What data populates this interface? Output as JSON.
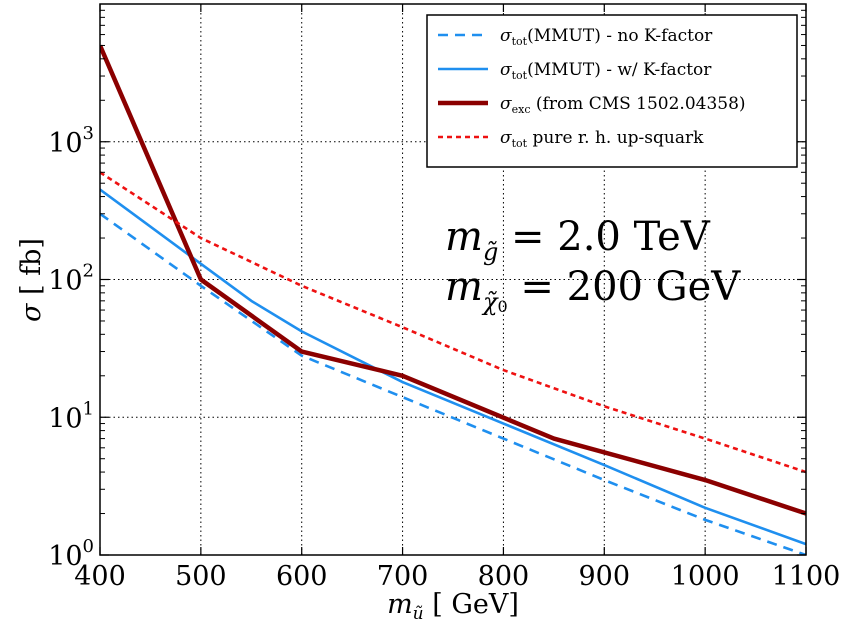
{
  "chart_data": {
    "type": "line",
    "title": "",
    "xlabel": {
      "base": "m",
      "sub": "ũ",
      "unit": "GeV"
    },
    "ylabel": {
      "base": "σ",
      "unit": "fb"
    },
    "xlim": [
      400,
      1100
    ],
    "ylim": [
      1,
      10000
    ],
    "yscale": "log",
    "grid": true,
    "legend_position": "top-right",
    "xticks": [
      "400",
      "500",
      "600",
      "700",
      "800",
      "900",
      "1000",
      "1100"
    ],
    "yticks": [
      {
        "value": 1,
        "base": "10",
        "exp": "0"
      },
      {
        "value": 10,
        "base": "10",
        "exp": "1"
      },
      {
        "value": 100,
        "base": "10",
        "exp": "2"
      },
      {
        "value": 1000,
        "base": "10",
        "exp": "3"
      }
    ],
    "series": [
      {
        "sym": "σ",
        "sub": "tot",
        "text": "(MMUT)  - no K-factor",
        "color": "#1f8fef",
        "style": "dashed",
        "x": [
          400,
          500,
          600,
          700,
          800,
          900,
          1000,
          1100
        ],
        "y": [
          300,
          90,
          28,
          14,
          7,
          3.5,
          1.8,
          1.0
        ]
      },
      {
        "sym": "σ",
        "sub": "tot",
        "text": "(MMUT)  - w/ K-factor",
        "color": "#1f8fef",
        "style": "solid",
        "x": [
          400,
          500,
          550,
          600,
          700,
          800,
          900,
          1000,
          1100
        ],
        "y": [
          450,
          130,
          70,
          42,
          18,
          9,
          4.5,
          2.2,
          1.2
        ]
      },
      {
        "sym": "σ",
        "sub": "exc",
        "text": " (from CMS 1502.04358)",
        "color": "#8b0000",
        "style": "solid",
        "x": [
          400,
          500,
          600,
          700,
          850,
          1000,
          1100
        ],
        "y": [
          5000,
          100,
          30,
          20,
          7,
          3.5,
          2
        ]
      },
      {
        "sym": "σ",
        "sub": "tot",
        "text": " pure r. h. up-squark",
        "color": "#ee1111",
        "style": "dotted",
        "x": [
          400,
          500,
          600,
          700,
          800,
          900,
          1000,
          1100
        ],
        "y": [
          600,
          200,
          90,
          45,
          22,
          12,
          7,
          4
        ]
      }
    ],
    "annotations": [
      {
        "base": "m",
        "sub": "g̃",
        "text": " = 2.0 TeV"
      },
      {
        "base": "m",
        "sub": "χ̃",
        "sub2": "0",
        "text": " = 200 GeV"
      }
    ]
  }
}
